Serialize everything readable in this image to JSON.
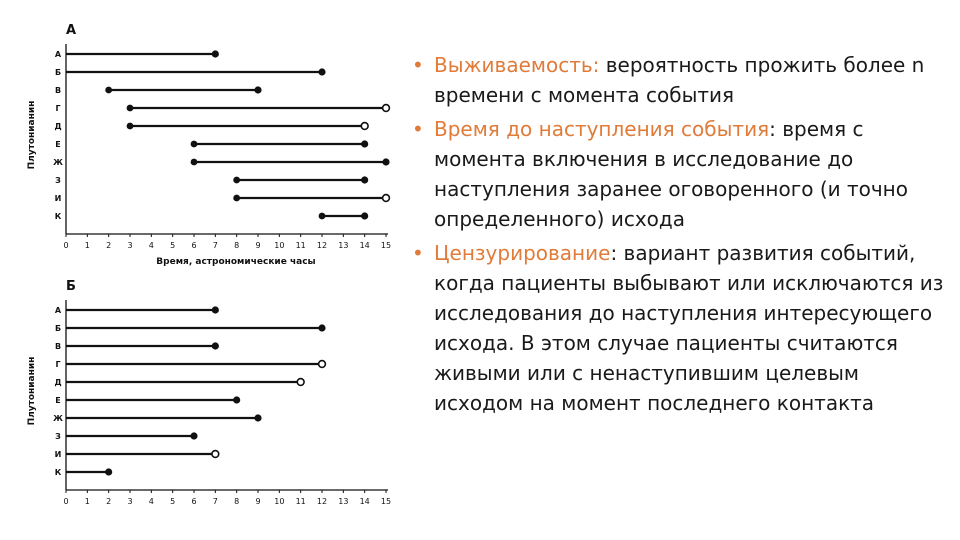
{
  "chart_data": [
    {
      "type": "timeline",
      "panel_label": "А",
      "ylabel": "Плутонианин",
      "xlabel": "Время, астрономические часы",
      "xlim": [
        0,
        15
      ],
      "x_ticks": [
        "0",
        "1",
        "2",
        "3",
        "4",
        "5",
        "6",
        "7",
        "8",
        "9",
        "10",
        "11",
        "12",
        "13",
        "14",
        "15"
      ],
      "subjects": [
        {
          "label": "А",
          "start": 0,
          "end": 7,
          "outcome": "event"
        },
        {
          "label": "Б",
          "start": 0,
          "end": 12,
          "outcome": "event"
        },
        {
          "label": "В",
          "start": 2,
          "end": 9,
          "outcome": "event"
        },
        {
          "label": "Г",
          "start": 3,
          "end": 15,
          "outcome": "censored"
        },
        {
          "label": "Д",
          "start": 3,
          "end": 14,
          "outcome": "censored"
        },
        {
          "label": "Е",
          "start": 6,
          "end": 14,
          "outcome": "event"
        },
        {
          "label": "Ж",
          "start": 6,
          "end": 15,
          "outcome": "event"
        },
        {
          "label": "З",
          "start": 8,
          "end": 14,
          "outcome": "event"
        },
        {
          "label": "И",
          "start": 8,
          "end": 15,
          "outcome": "censored"
        },
        {
          "label": "К",
          "start": 12,
          "end": 14,
          "outcome": "event"
        }
      ]
    },
    {
      "type": "timeline",
      "panel_label": "Б",
      "ylabel": "Плутонианин",
      "xlabel": "",
      "xlim": [
        0,
        15
      ],
      "x_ticks": [
        "0",
        "1",
        "2",
        "3",
        "4",
        "5",
        "6",
        "7",
        "8",
        "9",
        "10",
        "11",
        "12",
        "13",
        "14",
        "15"
      ],
      "subjects": [
        {
          "label": "А",
          "start": 0,
          "end": 7,
          "outcome": "event"
        },
        {
          "label": "Б",
          "start": 0,
          "end": 12,
          "outcome": "event"
        },
        {
          "label": "В",
          "start": 0,
          "end": 7,
          "outcome": "event"
        },
        {
          "label": "Г",
          "start": 0,
          "end": 12,
          "outcome": "censored"
        },
        {
          "label": "Д",
          "start": 0,
          "end": 11,
          "outcome": "censored"
        },
        {
          "label": "Е",
          "start": 0,
          "end": 8,
          "outcome": "event"
        },
        {
          "label": "Ж",
          "start": 0,
          "end": 9,
          "outcome": "event"
        },
        {
          "label": "З",
          "start": 0,
          "end": 6,
          "outcome": "event"
        },
        {
          "label": "И",
          "start": 0,
          "end": 7,
          "outcome": "censored"
        },
        {
          "label": "К",
          "start": 0,
          "end": 2,
          "outcome": "event"
        }
      ]
    }
  ],
  "bullets": [
    {
      "term": "Выживаемость:",
      "text": " вероятность прожить более n времени с момента события"
    },
    {
      "term": "Время до наступления события",
      "text": ": время с момента включения в исследование до наступления заранее оговоренного (и точно определенного) исхода"
    },
    {
      "term": "Цензурирование",
      "text": ": вариант развития событий, когда пациенты выбывают или исключаются из исследования до наступления интересующего исхода. В этом случае пациенты считаются живыми или с ненаступившим целевым исходом на момент последнего контакта"
    }
  ],
  "colors": {
    "ink": "#111111",
    "accent": "#e07b39",
    "text": "#1a1a1a"
  }
}
